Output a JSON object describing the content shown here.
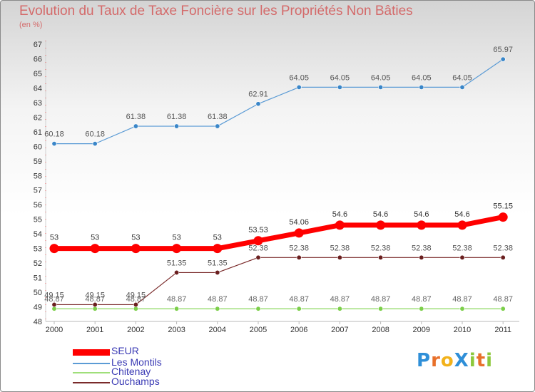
{
  "title": "Evolution du Taux de Taxe Foncière sur les Propriétés Non Bâties",
  "subtitle": "(en %)",
  "brand": {
    "text": "ProXiti",
    "colors": [
      "#2f8fd8",
      "#e8702a",
      "#f2b21b",
      "#2f8fd8",
      "#8cc83c",
      "#e8702a",
      "#8cc83c"
    ]
  },
  "chart_data": {
    "type": "line",
    "x": [
      "2000",
      "2001",
      "2002",
      "2003",
      "2004",
      "2005",
      "2006",
      "2007",
      "2008",
      "2009",
      "2010",
      "2011"
    ],
    "ylim": [
      48,
      67
    ],
    "yticks": [
      "48",
      "49",
      "50",
      "51",
      "52",
      "53",
      "54",
      "55",
      "56",
      "57",
      "58",
      "59",
      "60",
      "61",
      "62",
      "63",
      "64",
      "65",
      "66",
      "67"
    ],
    "grid": false,
    "legend": "bottom-left",
    "series": [
      {
        "name": "SEUR",
        "color": "#ff0000",
        "values": [
          53,
          53,
          53,
          53,
          53,
          53.53,
          54.06,
          54.6,
          54.6,
          54.6,
          54.6,
          55.15
        ],
        "labels": [
          "53",
          "53",
          "53",
          "53",
          "53",
          "53.53",
          "54.06",
          "54.6",
          "54.6",
          "54.6",
          "54.6",
          "55.15"
        ]
      },
      {
        "name": "Les Montils",
        "color": "#5b9bd5",
        "values": [
          60.18,
          60.18,
          61.38,
          61.38,
          61.38,
          62.91,
          64.05,
          64.05,
          64.05,
          64.05,
          64.05,
          65.97
        ],
        "labels": [
          "60.18",
          "60.18",
          "61.38",
          "61.38",
          "61.38",
          "62.91",
          "64.05",
          "64.05",
          "64.05",
          "64.05",
          "64.05",
          "65.97"
        ]
      },
      {
        "name": "Chitenay",
        "color": "#9fdf7a",
        "values": [
          48.87,
          48.87,
          48.87,
          48.87,
          48.87,
          48.87,
          48.87,
          48.87,
          48.87,
          48.87,
          48.87,
          48.87
        ],
        "labels": [
          "48.87",
          "48.87",
          "48.87",
          "48.87",
          "48.87",
          "48.87",
          "48.87",
          "48.87",
          "48.87",
          "48.87",
          "48.87",
          "48.87"
        ]
      },
      {
        "name": "Ouchamps",
        "color": "#7a2a2a",
        "values": [
          49.15,
          49.15,
          49.15,
          51.35,
          51.35,
          52.38,
          52.38,
          52.38,
          52.38,
          52.38,
          52.38,
          52.38
        ],
        "labels": [
          "49.15",
          "49.15",
          "49.15",
          "51.35",
          "51.35",
          "52.38",
          "52.38",
          "52.38",
          "52.38",
          "52.38",
          "52.38",
          "52.38"
        ]
      }
    ]
  }
}
